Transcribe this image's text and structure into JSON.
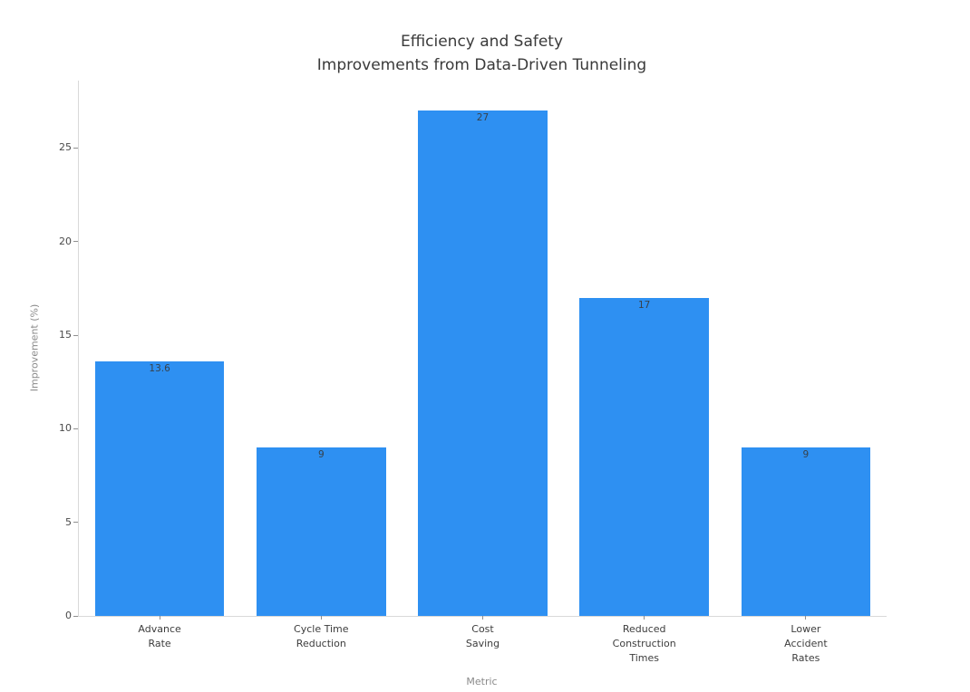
{
  "chart_data": {
    "type": "bar",
    "title": "Efficiency and Safety\nImprovements from Data-Driven Tunneling",
    "xlabel": "Metric",
    "ylabel": "Improvement (%)",
    "categories": [
      [
        "Advance",
        "Rate"
      ],
      [
        "Cycle Time",
        "Reduction"
      ],
      [
        "Cost",
        "Saving"
      ],
      [
        "Reduced",
        "Construction",
        "Times"
      ],
      [
        "Lower",
        "Accident",
        "Rates"
      ]
    ],
    "values": [
      13.6,
      9,
      27,
      17,
      9
    ],
    "value_labels": [
      "13.6",
      "9",
      "27",
      "17",
      "9"
    ],
    "yticks": [
      0,
      5,
      10,
      15,
      20,
      25
    ],
    "ylim": [
      0,
      28.6
    ],
    "bar_color": "#2E90F2",
    "grid": false,
    "legend": null
  }
}
